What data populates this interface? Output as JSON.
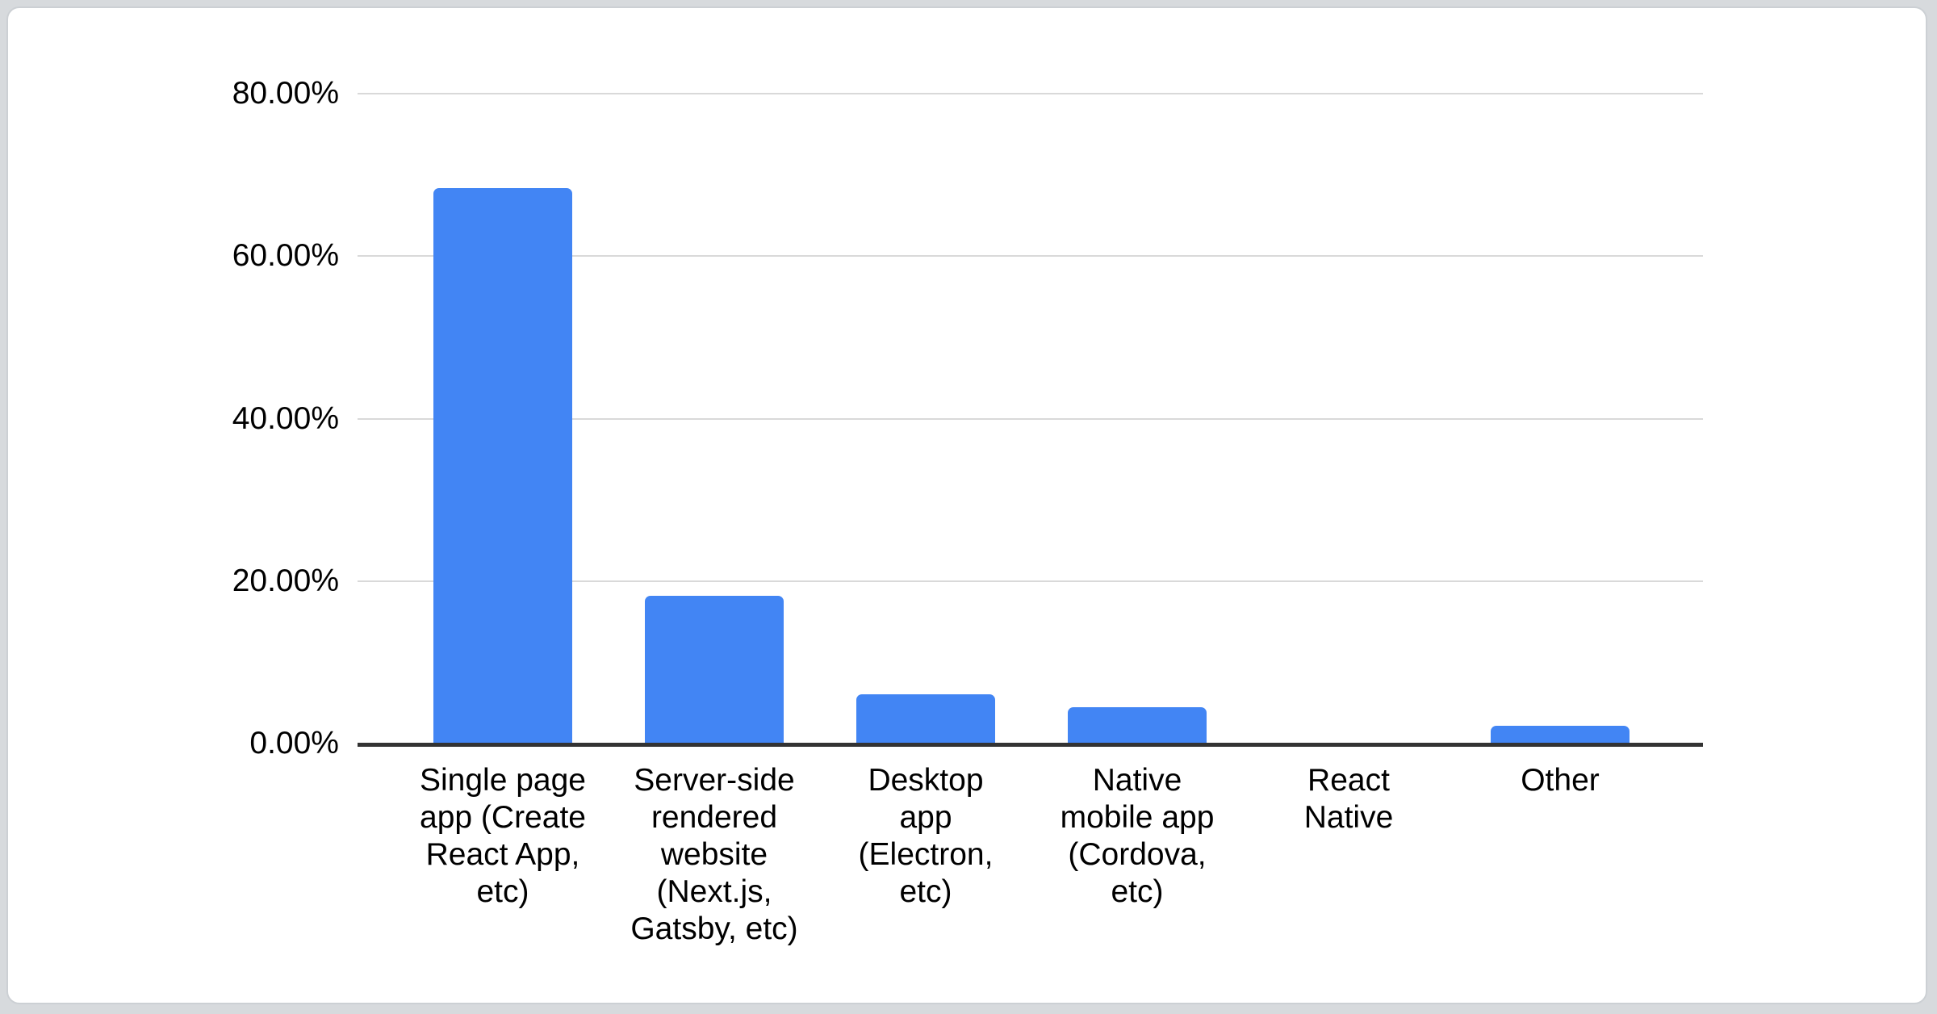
{
  "page": {
    "background_color": "#d7dadd",
    "card_background": "#ffffff",
    "card_border_color": "#ccd0d4"
  },
  "chart_data": {
    "type": "bar",
    "title": "",
    "xlabel": "",
    "ylabel": "",
    "categories": [
      "Single page app (Create React App, etc)",
      "Server-side rendered website (Next.js, Gatsby, etc)",
      "Desktop app (Electron, etc)",
      "Native mobile app (Cordova, etc)",
      "React Native",
      "Other"
    ],
    "category_lines": [
      [
        "Single page",
        "app (Create",
        "React App,",
        "etc)"
      ],
      [
        "Server-side",
        "rendered",
        "website",
        "(Next.js,",
        "Gatsby, etc)"
      ],
      [
        "Desktop",
        "app",
        "(Electron,",
        "etc)"
      ],
      [
        "Native",
        "mobile app",
        "(Cordova,",
        "etc)"
      ],
      [
        "React",
        "Native"
      ],
      [
        "Other"
      ]
    ],
    "values": [
      68.4,
      18.2,
      6.1,
      4.5,
      0,
      2.2
    ],
    "value_unit": "%",
    "ylim": [
      0,
      80
    ],
    "yticks": [
      {
        "value": 80,
        "label": "80.00%"
      },
      {
        "value": 60,
        "label": "60.00%"
      },
      {
        "value": 40,
        "label": "40.00%"
      },
      {
        "value": 20,
        "label": "20.00%"
      },
      {
        "value": 0,
        "label": "0.00%"
      }
    ],
    "grid": true,
    "legend_position": "none",
    "bar_color": "#4285f4",
    "gridline_color": "#d9d9d9",
    "axis_line_color": "#333333",
    "label_color": "#000000"
  }
}
